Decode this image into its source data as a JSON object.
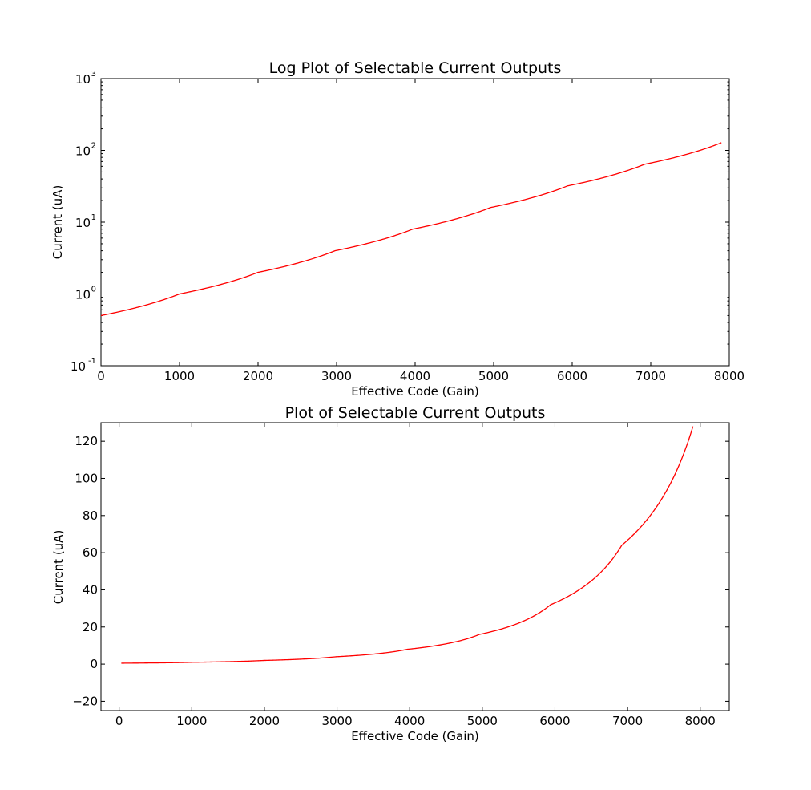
{
  "chart_data": [
    {
      "type": "line",
      "title": "Log Plot of Selectable Current Outputs",
      "xlabel": "Effective Code (Gain)",
      "ylabel": "Current (uA)",
      "yscale": "log",
      "xlim": [
        0,
        8000
      ],
      "ylim": [
        0.1,
        1000
      ],
      "xticks": [
        "0",
        "1000",
        "2000",
        "3000",
        "4000",
        "5000",
        "6000",
        "7000",
        "8000"
      ],
      "yticks": [
        {
          "base": "10",
          "exp": "-1"
        },
        {
          "base": "10",
          "exp": "0"
        },
        {
          "base": "10",
          "exp": "1"
        },
        {
          "base": "10",
          "exp": "2"
        },
        {
          "base": "10",
          "exp": "3"
        }
      ],
      "line_color": "#ff0000",
      "series": [
        {
          "segments": [
            {
              "x_start": 0,
              "x_end": 1000,
              "y_start": 0.5,
              "y_end": 1.0
            },
            {
              "x_start": 1000,
              "x_end": 2000,
              "y_start": 1.0,
              "y_end": 2.0
            },
            {
              "x_start": 2000,
              "x_end": 2980,
              "y_start": 2.0,
              "y_end": 4.0
            },
            {
              "x_start": 2980,
              "x_end": 3970,
              "y_start": 4.0,
              "y_end": 8.0
            },
            {
              "x_start": 3970,
              "x_end": 4960,
              "y_start": 8.0,
              "y_end": 16.0
            },
            {
              "x_start": 4960,
              "x_end": 5940,
              "y_start": 16.0,
              "y_end": 32.0
            },
            {
              "x_start": 5940,
              "x_end": 6920,
              "y_start": 32.0,
              "y_end": 64.0
            },
            {
              "x_start": 6920,
              "x_end": 7900,
              "y_start": 64.0,
              "y_end": 128.0
            }
          ]
        }
      ]
    },
    {
      "type": "line",
      "title": "Plot of Selectable Current Outputs",
      "xlabel": "Effective Code (Gain)",
      "ylabel": "Current (uA)",
      "yscale": "linear",
      "xlim": [
        -250,
        8400
      ],
      "ylim": [
        -25,
        130
      ],
      "xticks": [
        "0",
        "1000",
        "2000",
        "3000",
        "4000",
        "5000",
        "6000",
        "7000",
        "8000"
      ],
      "yticks": [
        "−20",
        "0",
        "20",
        "40",
        "60",
        "80",
        "100",
        "120"
      ],
      "line_color": "#ff0000",
      "series": [
        {
          "segments": [
            {
              "x_start": 30,
              "x_end": 1010,
              "y_start": 0.5,
              "y_end": 1.0
            },
            {
              "x_start": 1010,
              "x_end": 2000,
              "y_start": 1.0,
              "y_end": 2.0
            },
            {
              "x_start": 2000,
              "x_end": 2990,
              "y_start": 2.0,
              "y_end": 4.0
            },
            {
              "x_start": 2990,
              "x_end": 3970,
              "y_start": 4.0,
              "y_end": 8.0
            },
            {
              "x_start": 3970,
              "x_end": 4960,
              "y_start": 8.0,
              "y_end": 16.0
            },
            {
              "x_start": 4960,
              "x_end": 5940,
              "y_start": 16.0,
              "y_end": 32.0
            },
            {
              "x_start": 5940,
              "x_end": 6920,
              "y_start": 32.0,
              "y_end": 64.0
            },
            {
              "x_start": 6920,
              "x_end": 7900,
              "y_start": 64.0,
              "y_end": 128.0
            }
          ]
        }
      ]
    }
  ]
}
